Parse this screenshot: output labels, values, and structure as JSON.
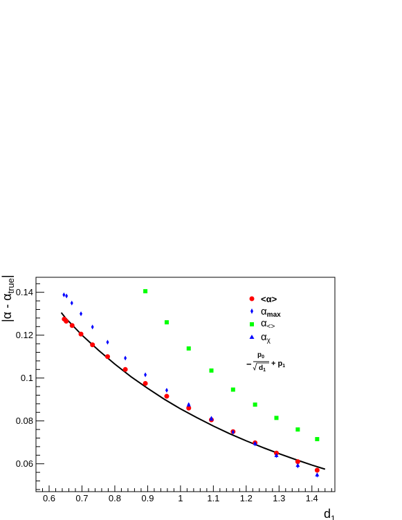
{
  "chart_data": {
    "type": "scatter",
    "xlabel": "d",
    "xlabel_sub": "1",
    "ylabel": "|α - α",
    "ylabel_sub": "true",
    "ylabel_close": "|",
    "xlim": [
      0.56,
      1.47
    ],
    "ylim": [
      0.047,
      0.147
    ],
    "x_ticks": [
      "0.6",
      "0.7",
      "0.8",
      "0.9",
      "1",
      "1.1",
      "1.2",
      "1.3",
      "1.4"
    ],
    "y_ticks": [
      "0.06",
      "0.08",
      "0.1",
      "0.12",
      "0.14"
    ],
    "x_tick_values": [
      0.6,
      0.7,
      0.8,
      0.9,
      1.0,
      1.1,
      1.2,
      1.3,
      1.4
    ],
    "y_tick_values": [
      0.06,
      0.08,
      0.1,
      0.12,
      0.14
    ],
    "grid": false,
    "legend_placement": "top-right",
    "series": [
      {
        "name": "<α>",
        "name_sub": "",
        "color": "#ff0000",
        "marker": "circle",
        "points": [
          {
            "x": 0.646,
            "y": 0.1275
          },
          {
            "x": 0.652,
            "y": 0.1265
          },
          {
            "x": 0.67,
            "y": 0.1245
          },
          {
            "x": 0.697,
            "y": 0.1205
          },
          {
            "x": 0.732,
            "y": 0.1155
          },
          {
            "x": 0.778,
            "y": 0.11
          },
          {
            "x": 0.832,
            "y": 0.104
          },
          {
            "x": 0.893,
            "y": 0.0975
          },
          {
            "x": 0.958,
            "y": 0.0915
          },
          {
            "x": 1.025,
            "y": 0.086
          },
          {
            "x": 1.094,
            "y": 0.0805
          },
          {
            "x": 1.16,
            "y": 0.075
          },
          {
            "x": 1.227,
            "y": 0.0698
          },
          {
            "x": 1.292,
            "y": 0.065
          },
          {
            "x": 1.357,
            "y": 0.061
          },
          {
            "x": 1.416,
            "y": 0.057
          }
        ]
      },
      {
        "name": "α",
        "name_sub": "max",
        "color": "#0000ff",
        "marker": "diamond",
        "points": [
          {
            "x": 0.645,
            "y": 0.1388
          },
          {
            "x": 0.653,
            "y": 0.1383
          },
          {
            "x": 0.669,
            "y": 0.135
          },
          {
            "x": 0.697,
            "y": 0.13
          },
          {
            "x": 0.732,
            "y": 0.1238
          },
          {
            "x": 0.778,
            "y": 0.1167
          },
          {
            "x": 0.832,
            "y": 0.1093
          },
          {
            "x": 0.893,
            "y": 0.1015
          },
          {
            "x": 0.958,
            "y": 0.0943
          },
          {
            "x": 1.025,
            "y": 0.0876
          },
          {
            "x": 1.094,
            "y": 0.0812
          },
          {
            "x": 1.16,
            "y": 0.0748
          },
          {
            "x": 1.227,
            "y": 0.0693
          },
          {
            "x": 1.292,
            "y": 0.0638
          },
          {
            "x": 1.357,
            "y": 0.059
          },
          {
            "x": 1.416,
            "y": 0.0547
          }
        ]
      },
      {
        "name": "α",
        "name_sub": "<>",
        "color": "#00ff00",
        "marker": "square",
        "points": [
          {
            "x": 0.893,
            "y": 0.1405
          },
          {
            "x": 0.958,
            "y": 0.126
          },
          {
            "x": 1.025,
            "y": 0.1138
          },
          {
            "x": 1.094,
            "y": 0.1035
          },
          {
            "x": 1.16,
            "y": 0.0946
          },
          {
            "x": 1.227,
            "y": 0.0876
          },
          {
            "x": 1.292,
            "y": 0.0814
          },
          {
            "x": 1.357,
            "y": 0.076
          },
          {
            "x": 1.416,
            "y": 0.0715
          }
        ]
      },
      {
        "name": "α",
        "name_sub": "χ",
        "color": "#0000ff",
        "marker": "triangle",
        "points": [
          {
            "x": 1.025,
            "y": 0.0874
          },
          {
            "x": 1.094,
            "y": 0.0808
          },
          {
            "x": 1.227,
            "y": 0.0694
          },
          {
            "x": 1.292,
            "y": 0.0638
          },
          {
            "x": 1.357,
            "y": 0.0592
          },
          {
            "x": 1.416,
            "y": 0.0548
          }
        ]
      }
    ],
    "fit": {
      "color": "#000000",
      "x_range": [
        0.637,
        1.44
      ],
      "legend_minus": "−",
      "legend_numerator": "p",
      "legend_numerator_sub": "0",
      "legend_denominator": "d",
      "legend_denominator_sub": "1",
      "legend_plus": "+ p",
      "legend_plus_sub": "1",
      "curve": [
        {
          "x": 0.637,
          "y": 0.1305
        },
        {
          "x": 0.65,
          "y": 0.128
        },
        {
          "x": 0.7,
          "y": 0.12
        },
        {
          "x": 0.75,
          "y": 0.113
        },
        {
          "x": 0.8,
          "y": 0.1065
        },
        {
          "x": 0.85,
          "y": 0.1005
        },
        {
          "x": 0.9,
          "y": 0.0952
        },
        {
          "x": 0.95,
          "y": 0.0902
        },
        {
          "x": 1.0,
          "y": 0.0856
        },
        {
          "x": 1.05,
          "y": 0.0815
        },
        {
          "x": 1.1,
          "y": 0.0776
        },
        {
          "x": 1.15,
          "y": 0.074
        },
        {
          "x": 1.2,
          "y": 0.0707
        },
        {
          "x": 1.25,
          "y": 0.0676
        },
        {
          "x": 1.3,
          "y": 0.0647
        },
        {
          "x": 1.35,
          "y": 0.062
        },
        {
          "x": 1.4,
          "y": 0.0594
        },
        {
          "x": 1.44,
          "y": 0.0575
        }
      ]
    }
  }
}
